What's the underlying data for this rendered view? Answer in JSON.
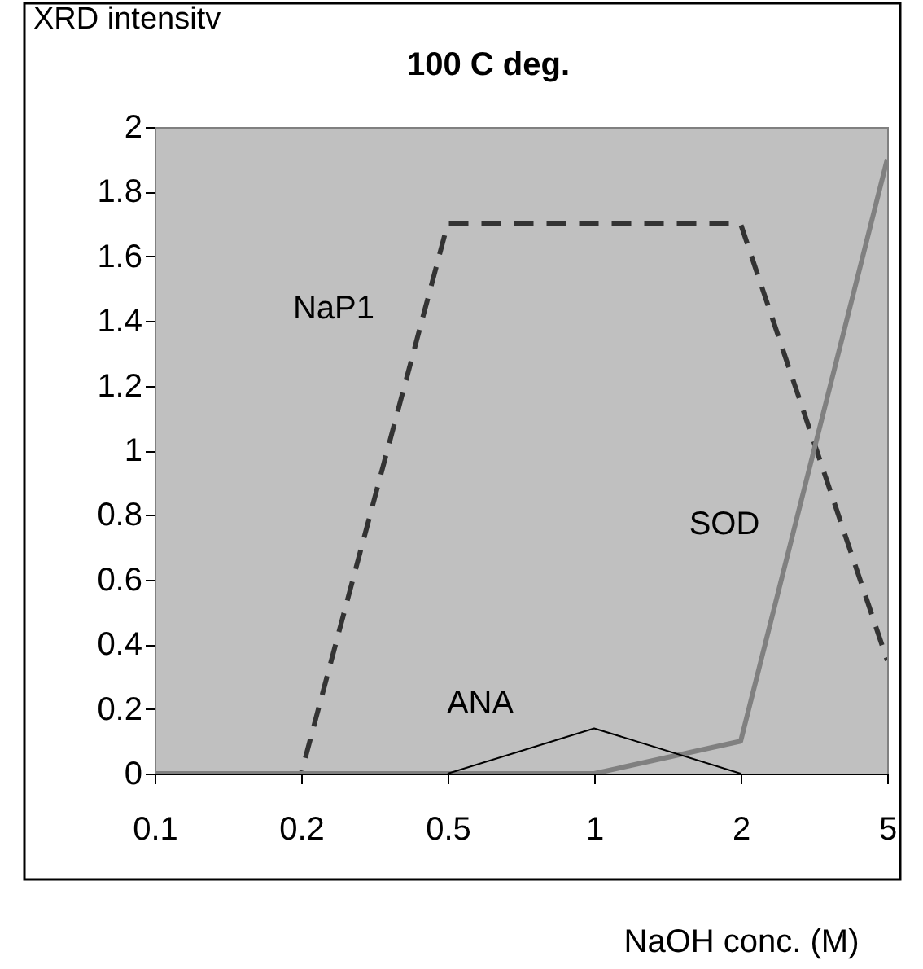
{
  "chart_data": {
    "type": "line",
    "title": "100 C deg.",
    "ylabel": "XRD intensitv",
    "xlabel": "NaOH conc. (M)",
    "categories": [
      "0.1",
      "0.2",
      "0.5",
      "1",
      "2",
      "5"
    ],
    "series": [
      {
        "name": "NaP1",
        "color": "#333333",
        "line_style": "dashed",
        "values": [
          0,
          0,
          1.7,
          1.7,
          1.7,
          0.35
        ]
      },
      {
        "name": "SOD",
        "color": "#808080",
        "line_style": "solid",
        "values": [
          0,
          0,
          0,
          0,
          0.1,
          1.9
        ]
      },
      {
        "name": "ANA",
        "color": "#000000",
        "line_style": "solid",
        "values": [
          null,
          null,
          0,
          0.14,
          0,
          null
        ]
      }
    ],
    "ylim": [
      0,
      2
    ],
    "yticks": [
      0,
      0.2,
      0.4,
      0.6,
      0.8,
      1,
      1.2,
      1.4,
      1.6,
      1.8,
      2
    ],
    "grid": false,
    "marker": "none"
  }
}
